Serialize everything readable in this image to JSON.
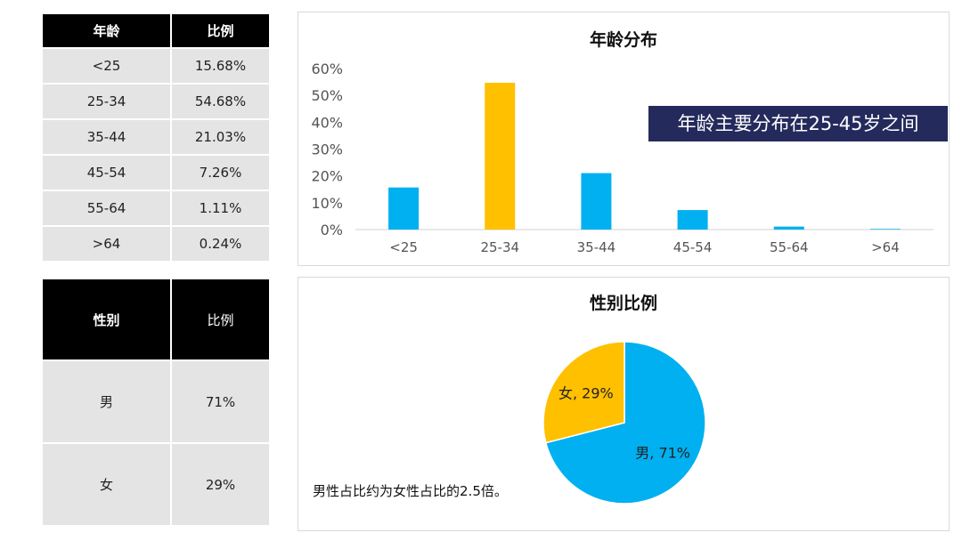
{
  "age_table": {
    "headers": [
      "年龄",
      "比例"
    ],
    "rows": [
      [
        "<25",
        "15.68%"
      ],
      [
        "25-34",
        "54.68%"
      ],
      [
        "35-44",
        "21.03%"
      ],
      [
        "45-54",
        "7.26%"
      ],
      [
        "55-64",
        "1.11%"
      ],
      [
        ">64",
        "0.24%"
      ]
    ]
  },
  "gender_table": {
    "headers": [
      "性别",
      "比例"
    ],
    "rows": [
      [
        "男",
        "71%"
      ],
      [
        "女",
        "29%"
      ]
    ]
  },
  "age_chart": {
    "callout": "年龄主要分布在25-45岁之间"
  },
  "gender_chart": {
    "note": "男性占比约为女性占比的2.5倍。"
  },
  "colors": {
    "blue": "#00b0f0",
    "orange": "#ffc000",
    "callout_bg": "#242a5c"
  },
  "chart_data": [
    {
      "type": "bar",
      "title": "年龄分布",
      "categories": [
        "<25",
        "25-34",
        "35-44",
        "45-54",
        "55-64",
        ">64"
      ],
      "values": [
        15.68,
        54.68,
        21.03,
        7.26,
        1.11,
        0.24
      ],
      "highlight_index": 1,
      "ylim": [
        0,
        60
      ],
      "yticks": [
        "0%",
        "10%",
        "20%",
        "30%",
        "40%",
        "50%",
        "60%"
      ],
      "xlabel": "",
      "ylabel": "",
      "grid": false,
      "legend": "none"
    },
    {
      "type": "pie",
      "title": "性别比例",
      "slices": [
        {
          "label": "男",
          "value": 71,
          "text": "男, 71%"
        },
        {
          "label": "女",
          "value": 29,
          "text": "女, 29%"
        }
      ],
      "legend": "none"
    }
  ]
}
